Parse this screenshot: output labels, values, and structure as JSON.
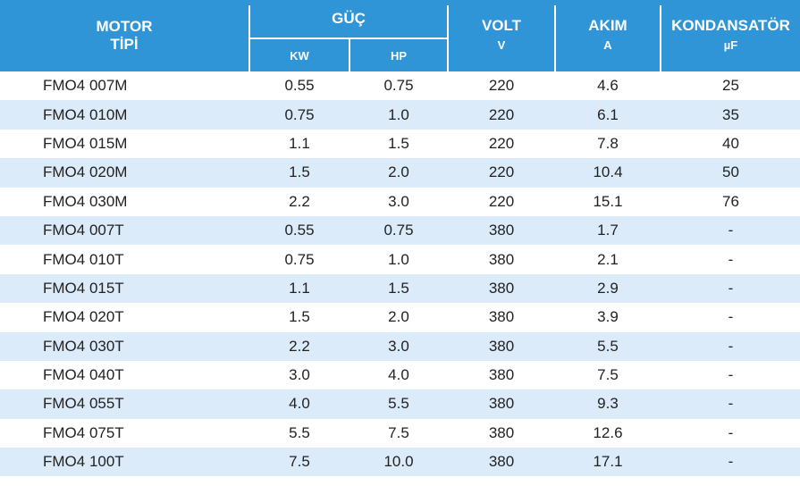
{
  "header": {
    "motor": "MOTOR",
    "tipi": "TİPİ",
    "guc": "GÜÇ",
    "kw": "KW",
    "hp": "HP",
    "volt": "VOLT",
    "volt_unit": "V",
    "akim": "AKIM",
    "akim_unit": "A",
    "kondansator": "KONDANSATÖR",
    "kondansator_unit": "µF"
  },
  "rows": [
    {
      "type": "FMO4 007M",
      "kw": "0.55",
      "hp": "0.75",
      "volt": "220",
      "akim": "4.6",
      "kond": "25"
    },
    {
      "type": "FMO4 010M",
      "kw": "0.75",
      "hp": "1.0",
      "volt": "220",
      "akim": "6.1",
      "kond": "35"
    },
    {
      "type": "FMO4 015M",
      "kw": "1.1",
      "hp": "1.5",
      "volt": "220",
      "akim": "7.8",
      "kond": "40"
    },
    {
      "type": "FMO4 020M",
      "kw": "1.5",
      "hp": "2.0",
      "volt": "220",
      "akim": "10.4",
      "kond": "50"
    },
    {
      "type": "FMO4 030M",
      "kw": "2.2",
      "hp": "3.0",
      "volt": "220",
      "akim": "15.1",
      "kond": "76"
    },
    {
      "type": "FMO4 007T",
      "kw": "0.55",
      "hp": "0.75",
      "volt": "380",
      "akim": "1.7",
      "kond": "-"
    },
    {
      "type": "FMO4 010T",
      "kw": "0.75",
      "hp": "1.0",
      "volt": "380",
      "akim": "2.1",
      "kond": "-"
    },
    {
      "type": "FMO4 015T",
      "kw": "1.1",
      "hp": "1.5",
      "volt": "380",
      "akim": "2.9",
      "kond": "-"
    },
    {
      "type": "FMO4 020T",
      "kw": "1.5",
      "hp": "2.0",
      "volt": "380",
      "akim": "3.9",
      "kond": "-"
    },
    {
      "type": "FMO4 030T",
      "kw": "2.2",
      "hp": "3.0",
      "volt": "380",
      "akim": "5.5",
      "kond": "-"
    },
    {
      "type": "FMO4 040T",
      "kw": "3.0",
      "hp": "4.0",
      "volt": "380",
      "akim": "7.5",
      "kond": "-"
    },
    {
      "type": "FMO4 055T",
      "kw": "4.0",
      "hp": "5.5",
      "volt": "380",
      "akim": "9.3",
      "kond": "-"
    },
    {
      "type": "FMO4 075T",
      "kw": "5.5",
      "hp": "7.5",
      "volt": "380",
      "akim": "12.6",
      "kond": "-"
    },
    {
      "type": "FMO4 100T",
      "kw": "7.5",
      "hp": "10.0",
      "volt": "380",
      "akim": "17.1",
      "kond": "-"
    }
  ],
  "colors": {
    "header_bg": "#2f95d6",
    "stripe": "#dcebf9"
  }
}
